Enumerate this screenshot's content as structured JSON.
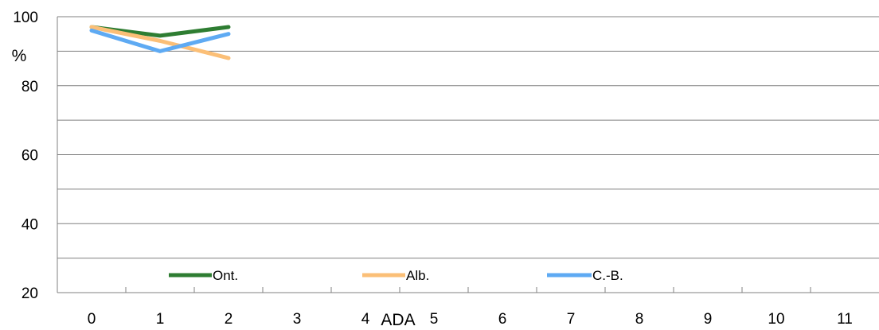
{
  "chart_data": {
    "type": "line",
    "xlabel": "ADA",
    "ylabel": "%",
    "x": [
      0,
      1,
      2
    ],
    "xlim": [
      0,
      11
    ],
    "ylim": [
      20,
      100
    ],
    "y_ticks": [
      "100",
      "80",
      "60",
      "40",
      "20"
    ],
    "x_ticks": [
      "0",
      "1",
      "2",
      "3",
      "4",
      "5",
      "6",
      "7",
      "8",
      "9",
      "10",
      "11"
    ],
    "grid": true,
    "legend_position": "bottom-inside",
    "series": [
      {
        "name": "Ont.",
        "color": "#2e7d32",
        "values": [
          97,
          94.5,
          97
        ]
      },
      {
        "name": "Alb.",
        "color": "#fbbf77",
        "values": [
          97,
          93,
          88
        ]
      },
      {
        "name": "C.-B.",
        "color": "#5eaaf3",
        "values": [
          96,
          90,
          95
        ]
      }
    ]
  }
}
